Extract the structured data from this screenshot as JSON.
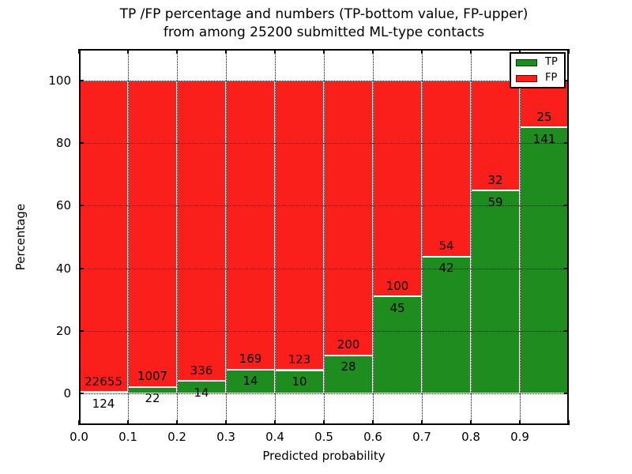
{
  "title": {
    "line1": "TP /FP percentage and numbers (TP-bottom value, FP-upper)",
    "line2": "from among 25200 submitted ML-type contacts"
  },
  "axes": {
    "xlabel": "Predicted probability",
    "ylabel": "Percentage",
    "x_tick_labels": [
      "0.0",
      "0.1",
      "0.2",
      "0.3",
      "0.4",
      "0.5",
      "0.6",
      "0.7",
      "0.8",
      "0.9"
    ],
    "y_ticks": [
      0,
      20,
      40,
      60,
      80,
      100
    ]
  },
  "legend": {
    "entries": [
      {
        "label": "TP",
        "color": "#1e8c1e"
      },
      {
        "label": "FP",
        "color": "#fa1f1a"
      }
    ]
  },
  "chart_data": {
    "type": "bar",
    "stacked": true,
    "normalized": "each bin scaled to 100%",
    "title": "TP /FP percentage and numbers (TP-bottom value, FP-upper) from among 25200 submitted ML-type contacts",
    "xlabel": "Predicted probability",
    "ylabel": "Percentage",
    "xlim": [
      0.0,
      1.0
    ],
    "ylim": [
      -10,
      110
    ],
    "bin_width": 0.1,
    "grid": "dotted",
    "legend_position": "upper right",
    "total_contacts": 25200,
    "categories": [
      "0.0-0.1",
      "0.1-0.2",
      "0.2-0.3",
      "0.3-0.4",
      "0.4-0.5",
      "0.5-0.6",
      "0.6-0.7",
      "0.7-0.8",
      "0.8-0.9",
      "0.9-1.0"
    ],
    "series": [
      {
        "name": "TP",
        "color": "#1e8c1e",
        "counts": [
          124,
          22,
          14,
          14,
          10,
          28,
          45,
          42,
          59,
          141
        ]
      },
      {
        "name": "FP",
        "color": "#fa1f1a",
        "counts": [
          22655,
          1007,
          336,
          169,
          123,
          200,
          100,
          54,
          32,
          25
        ]
      }
    ],
    "tp_percent_of_bin": [
      0.5,
      2.1,
      4.0,
      7.7,
      7.5,
      12.3,
      31.0,
      43.8,
      64.8,
      84.9
    ]
  }
}
